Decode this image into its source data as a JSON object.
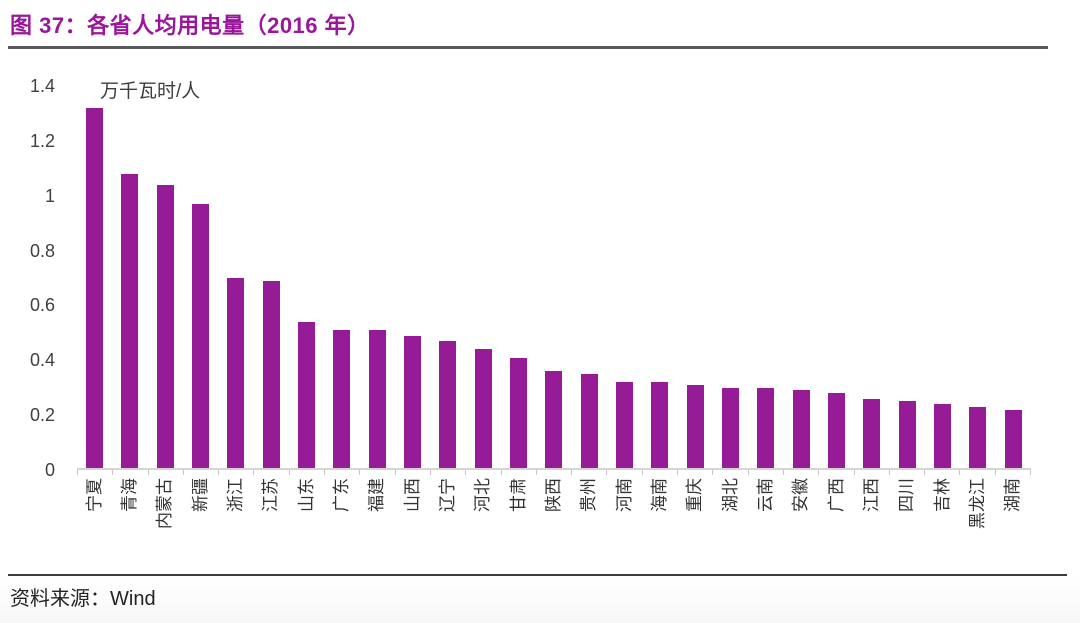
{
  "figure": {
    "title": "图 37：各省人均用电量（2016 年）",
    "source_prefix": "资料来源：",
    "source_value": "Wind"
  },
  "chart_data": {
    "type": "bar",
    "title": "各省人均用电量（2016 年）",
    "ylabel_unit": "万千瓦时/人",
    "categories": [
      "宁夏",
      "青海",
      "内蒙古",
      "新疆",
      "浙江",
      "江苏",
      "山东",
      "广东",
      "福建",
      "山西",
      "辽宁",
      "河北",
      "甘肃",
      "陕西",
      "贵州",
      "河南",
      "海南",
      "重庆",
      "湖北",
      "云南",
      "安徽",
      "广西",
      "江西",
      "四川",
      "吉林",
      "黑龙江",
      "湖南"
    ],
    "values": [
      1.32,
      1.08,
      1.04,
      0.97,
      0.7,
      0.69,
      0.54,
      0.51,
      0.51,
      0.49,
      0.47,
      0.44,
      0.41,
      0.36,
      0.35,
      0.32,
      0.32,
      0.31,
      0.3,
      0.3,
      0.29,
      0.28,
      0.26,
      0.25,
      0.24,
      0.23,
      0.22
    ],
    "ylim": [
      0,
      1.4
    ],
    "yticks": [
      0,
      0.2,
      0.4,
      0.6,
      0.8,
      1,
      1.2,
      1.4
    ],
    "ytick_labels": [
      "0",
      "0.2",
      "0.4",
      "0.6",
      "0.8",
      "1",
      "1.2",
      "1.4"
    ],
    "grid": false,
    "legend": "none",
    "bar_color": "#951C96",
    "xlabel_rotation": -90
  },
  "colors": {
    "accent": "#951C96",
    "title_text": "#9A169B",
    "axis_line": "#D6D3D3",
    "tick_text": "#404040",
    "header_rule": "#59595C",
    "footer_rule": "#3C3C3E"
  }
}
